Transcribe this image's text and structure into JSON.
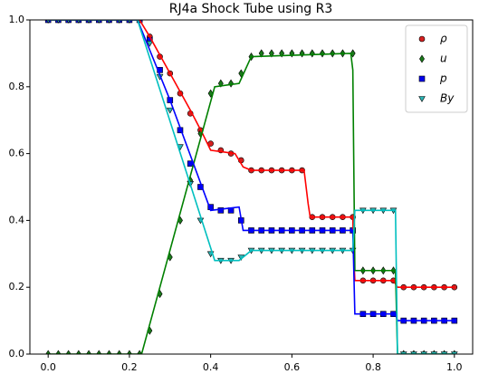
{
  "chart_data": {
    "type": "line",
    "title": "RJ4a Shock Tube using R3",
    "x": [
      0,
      0.025,
      0.05,
      0.075,
      0.1,
      0.125,
      0.15,
      0.175,
      0.2,
      0.225,
      0.25,
      0.275,
      0.3,
      0.325,
      0.35,
      0.375,
      0.4,
      0.425,
      0.45,
      0.475,
      0.5,
      0.525,
      0.55,
      0.575,
      0.6,
      0.625,
      0.65,
      0.675,
      0.7,
      0.725,
      0.75,
      0.775,
      0.8,
      0.825,
      0.85,
      0.875,
      0.9,
      0.925,
      0.95,
      0.975,
      1.0
    ],
    "series": [
      {
        "name": "ρ",
        "color": "#d62020",
        "marker": "o",
        "values": [
          1,
          1,
          1,
          1,
          1,
          1,
          1,
          1,
          1,
          1,
          0.95,
          0.89,
          0.84,
          0.78,
          0.72,
          0.67,
          0.63,
          0.61,
          0.6,
          0.58,
          0.55,
          0.55,
          0.55,
          0.55,
          0.55,
          0.55,
          0.41,
          0.41,
          0.41,
          0.41,
          0.41,
          0.22,
          0.22,
          0.22,
          0.22,
          0.2,
          0.2,
          0.2,
          0.2,
          0.2,
          0.2
        ],
        "line": {
          "color": "#ff0000",
          "x": [
            0,
            0.225,
            0.25,
            0.3,
            0.35,
            0.38,
            0.4,
            0.46,
            0.48,
            0.5,
            0.63,
            0.64,
            0.645,
            0.75,
            0.752,
            0.755,
            0.85,
            0.86,
            1.0
          ],
          "values": [
            1,
            1,
            0.95,
            0.84,
            0.73,
            0.66,
            0.61,
            0.6,
            0.56,
            0.55,
            0.55,
            0.45,
            0.41,
            0.41,
            0.3,
            0.22,
            0.22,
            0.2,
            0.2
          ]
        }
      },
      {
        "name": "u",
        "color": "#1a7a1a",
        "marker": "d",
        "values": [
          0,
          0,
          0,
          0,
          0,
          0,
          0,
          0,
          0,
          0,
          0.07,
          0.18,
          0.29,
          0.4,
          0.52,
          0.66,
          0.78,
          0.81,
          0.81,
          0.84,
          0.89,
          0.9,
          0.9,
          0.9,
          0.9,
          0.9,
          0.9,
          0.9,
          0.9,
          0.9,
          0.9,
          0.25,
          0.25,
          0.25,
          0.25,
          0,
          0,
          0,
          0,
          0,
          0
        ],
        "line": {
          "color": "#008000",
          "x": [
            0,
            0.23,
            0.41,
            0.47,
            0.5,
            0.745,
            0.75,
            0.755,
            0.855,
            0.86,
            1.0
          ],
          "values": [
            0,
            0,
            0.8,
            0.81,
            0.89,
            0.9,
            0.85,
            0.25,
            0.25,
            0,
            0
          ]
        }
      },
      {
        "name": "p",
        "color": "#0000ee",
        "marker": "s",
        "values": [
          1,
          1,
          1,
          1,
          1,
          1,
          1,
          1,
          1,
          1,
          0.94,
          0.85,
          0.76,
          0.67,
          0.57,
          0.5,
          0.44,
          0.43,
          0.43,
          0.4,
          0.37,
          0.37,
          0.37,
          0.37,
          0.37,
          0.37,
          0.37,
          0.37,
          0.37,
          0.37,
          0.37,
          0.12,
          0.12,
          0.12,
          0.12,
          0.1,
          0.1,
          0.1,
          0.1,
          0.1,
          0.1
        ],
        "line": {
          "color": "#0000ff",
          "x": [
            0,
            0.22,
            0.3,
            0.4,
            0.47,
            0.48,
            0.75,
            0.755,
            0.855,
            0.86,
            1.0
          ],
          "values": [
            1,
            1,
            0.76,
            0.43,
            0.44,
            0.37,
            0.37,
            0.12,
            0.12,
            0.1,
            0.1
          ]
        }
      },
      {
        "name": "By",
        "color": "#2bb5b5",
        "marker": "v",
        "values": [
          1,
          1,
          1,
          1,
          1,
          1,
          1,
          1,
          1,
          1,
          0.93,
          0.83,
          0.73,
          0.62,
          0.51,
          0.4,
          0.3,
          0.28,
          0.28,
          0.29,
          0.31,
          0.31,
          0.31,
          0.31,
          0.31,
          0.31,
          0.31,
          0.31,
          0.31,
          0.31,
          0.31,
          0.43,
          0.43,
          0.43,
          0.43,
          0,
          0,
          0,
          0,
          0,
          0
        ],
        "line": {
          "color": "#00bfbf",
          "x": [
            0,
            0.22,
            0.41,
            0.47,
            0.5,
            0.75,
            0.755,
            0.855,
            0.86,
            1.0
          ],
          "values": [
            1,
            1,
            0.28,
            0.28,
            0.31,
            0.31,
            0.43,
            0.43,
            0,
            0
          ]
        }
      }
    ],
    "xlim": [
      -0.045,
      1.045
    ],
    "ylim": [
      0,
      1
    ],
    "xticks": [
      {
        "value": 0,
        "label": "0.0"
      },
      {
        "value": 0.2,
        "label": "0.2"
      },
      {
        "value": 0.4,
        "label": "0.4"
      },
      {
        "value": 0.6,
        "label": "0.6"
      },
      {
        "value": 0.8,
        "label": "0.8"
      },
      {
        "value": 1,
        "label": "1.0"
      }
    ],
    "yticks": [
      {
        "value": 0,
        "label": "0.0"
      },
      {
        "value": 0.2,
        "label": "0.2"
      },
      {
        "value": 0.4,
        "label": "0.4"
      },
      {
        "value": 0.6,
        "label": "0.6"
      },
      {
        "value": 0.8,
        "label": "0.8"
      },
      {
        "value": 1,
        "label": "1.0"
      }
    ],
    "legend": "upper right"
  }
}
